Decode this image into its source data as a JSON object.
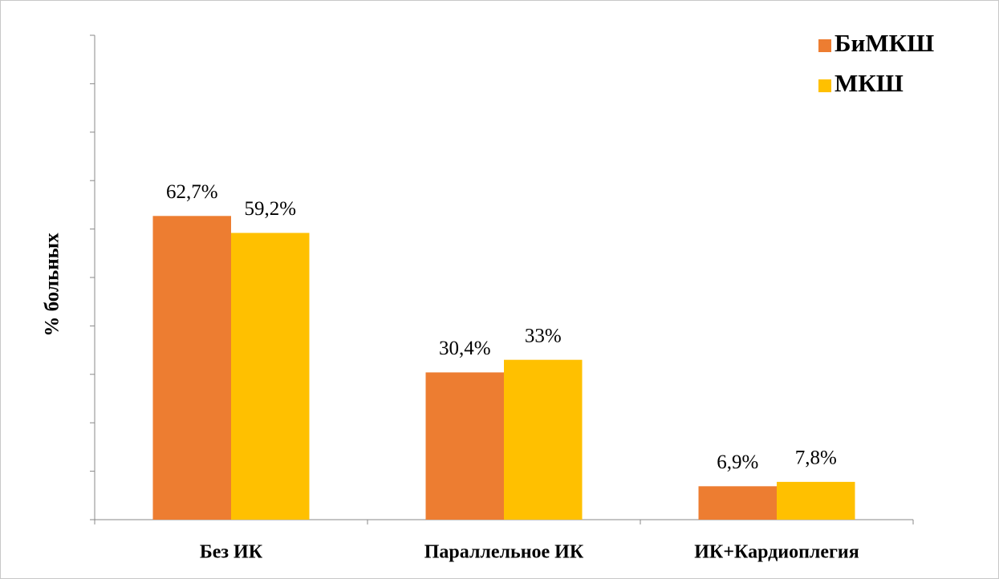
{
  "chart_data": {
    "type": "bar",
    "y_label": "% больных",
    "categories": [
      "Без ИК",
      "Параллельное ИК",
      "ИК+Кардиоплегия"
    ],
    "series": [
      {
        "name": "БиМКШ",
        "color": "#ed7d31",
        "values": [
          62.7,
          30.4,
          6.9
        ],
        "value_labels": [
          "62,7%",
          "30,4%",
          "6,9%"
        ]
      },
      {
        "name": "МКШ",
        "color": "#ffc000",
        "values": [
          59.2,
          33,
          7.8
        ],
        "value_labels": [
          "59,2%",
          "33%",
          "7,8%"
        ]
      }
    ],
    "ylim": [
      0,
      100
    ],
    "yticks": [
      0,
      10,
      20,
      30,
      40,
      50,
      60,
      70,
      80,
      90,
      100
    ],
    "legend": "upper right"
  }
}
